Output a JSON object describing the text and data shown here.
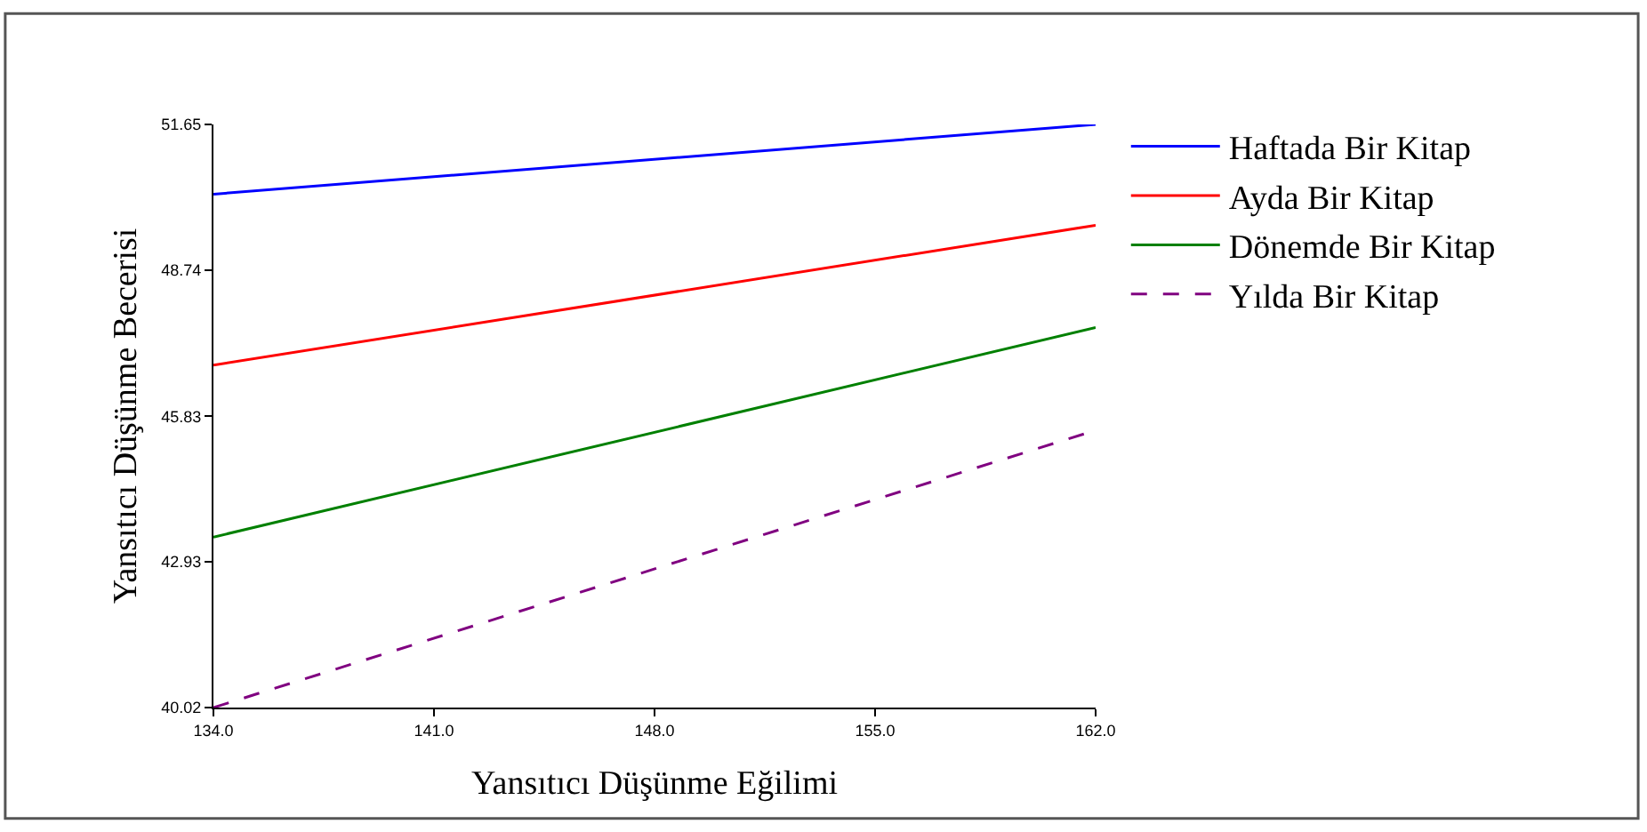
{
  "chart_data": {
    "type": "line",
    "xlabel": "Yansıtıcı Düşünme Eğilimi",
    "ylabel": "Yansıtıcı Düşünme Becerisi",
    "x": [
      134,
      162
    ],
    "series": [
      {
        "name": "Haftada Bir Kitap",
        "color": "#0000ff",
        "values": [
          50.26,
          51.65
        ]
      },
      {
        "name": "Ayda Bir Kitap",
        "color": "#ff0000",
        "values": [
          46.85,
          49.64
        ]
      },
      {
        "name": "Dönemde Bir Kitap",
        "color": "#008000",
        "values": [
          43.42,
          47.6
        ]
      },
      {
        "name": "Yılda Bir Kitap",
        "color": "#800080",
        "values": [
          40.02,
          45.55
        ],
        "line_style": "dashed"
      }
    ],
    "xlim": [
      134,
      162
    ],
    "ylim": [
      40.02,
      51.65
    ],
    "xticks": [
      {
        "value": 134,
        "label": "134.0"
      },
      {
        "value": 141,
        "label": "141.0"
      },
      {
        "value": 148,
        "label": "148.0"
      },
      {
        "value": 155,
        "label": "155.0"
      },
      {
        "value": 162,
        "label": "162.0"
      }
    ],
    "yticks": [
      40.02,
      42.93,
      45.83,
      48.74,
      51.65
    ],
    "legend": "top right",
    "marker": "none"
  }
}
